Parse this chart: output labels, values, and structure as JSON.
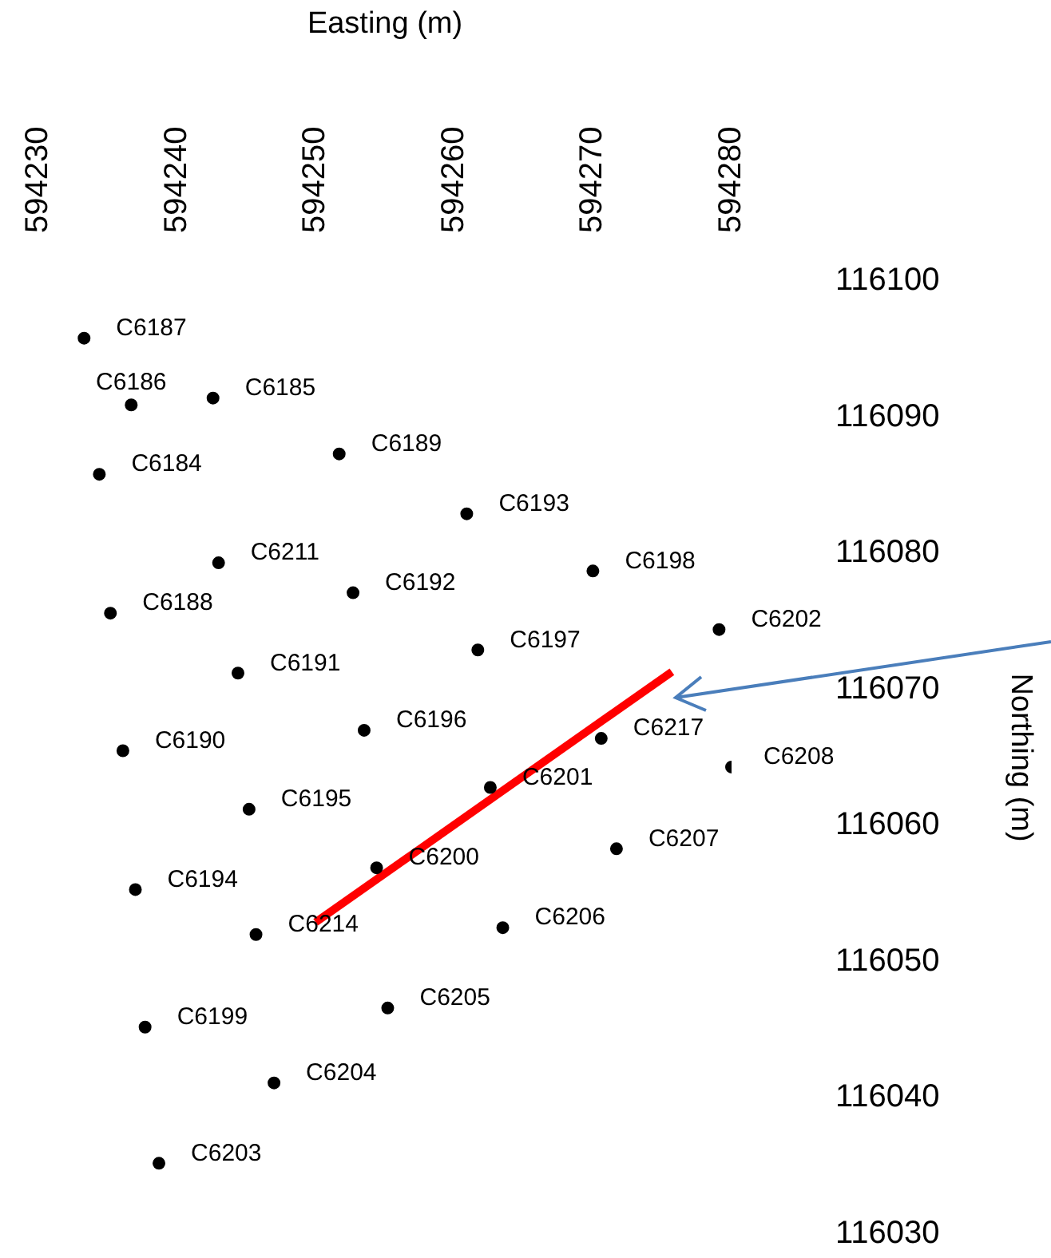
{
  "chart_data": {
    "type": "scatter",
    "xlabel": "Easting (m)",
    "ylabel": "Northing (m)",
    "xlim": [
      594230,
      594280
    ],
    "ylim": [
      116030,
      116100
    ],
    "xticks": [
      594230,
      594240,
      594250,
      594260,
      594270,
      594280
    ],
    "yticks": [
      116030,
      116040,
      116050,
      116060,
      116070,
      116080,
      116090,
      116100
    ],
    "grid": false,
    "legend": false,
    "marker": "circle",
    "series": [
      {
        "type": "scatter",
        "color": "#000000",
        "x": [
          594233.3,
          594236.7,
          594242.6,
          594251.7,
          594234.4,
          594260.9,
          594243.0,
          594270.0,
          594252.7,
          594235.2,
          594279.1,
          594261.7,
          594244.4,
          594253.5,
          594236.1,
          594270.6,
          594280.0,
          594262.6,
          594245.2,
          594271.7,
          594254.4,
          594237.0,
          594245.7,
          594263.5,
          594237.7,
          594255.2,
          594247.0,
          594238.7
        ],
        "values": [
          116095.8,
          116090.9,
          116091.4,
          116087.3,
          116085.8,
          116082.9,
          116079.3,
          116078.7,
          116077.1,
          116075.6,
          116074.4,
          116072.9,
          116071.2,
          116067.0,
          116065.5,
          116066.4,
          116064.3,
          116062.8,
          116061.2,
          116058.3,
          116056.9,
          116055.3,
          116052.0,
          116052.5,
          116045.2,
          116046.6,
          116041.1,
          116035.2
        ]
      },
      {
        "type": "line",
        "color": "#ff0000",
        "marker": "none",
        "x": [
          594250.0,
          594275.7
        ],
        "values": [
          116052.9,
          116071.3
        ]
      }
    ],
    "annotations": [
      {
        "text": "C6187",
        "x": 594233.3,
        "y": 116095.8
      },
      {
        "text": "C6186",
        "x": 594236.7,
        "y": 116090.9
      },
      {
        "text": "C6185",
        "x": 594242.6,
        "y": 116091.4
      },
      {
        "text": "C6189",
        "x": 594251.7,
        "y": 116087.3
      },
      {
        "text": "C6184",
        "x": 594234.4,
        "y": 116085.8
      },
      {
        "text": "C6193",
        "x": 594260.9,
        "y": 116082.9
      },
      {
        "text": "C6211",
        "x": 594243.0,
        "y": 116079.3
      },
      {
        "text": "C6198",
        "x": 594270.0,
        "y": 116078.7
      },
      {
        "text": "C6192",
        "x": 594252.7,
        "y": 116077.1
      },
      {
        "text": "C6188",
        "x": 594235.2,
        "y": 116075.6
      },
      {
        "text": "C6202",
        "x": 594279.1,
        "y": 116074.4
      },
      {
        "text": "C6197",
        "x": 594261.7,
        "y": 116072.9
      },
      {
        "text": "C6191",
        "x": 594244.4,
        "y": 116071.2
      },
      {
        "text": "C6196",
        "x": 594253.5,
        "y": 116067.0
      },
      {
        "text": "C6190",
        "x": 594236.1,
        "y": 116065.5
      },
      {
        "text": "C6217",
        "x": 594270.6,
        "y": 116066.4
      },
      {
        "text": "C6208",
        "x": 594280.0,
        "y": 116064.3
      },
      {
        "text": "C6201",
        "x": 594262.6,
        "y": 116062.8
      },
      {
        "text": "C6195",
        "x": 594245.2,
        "y": 116061.2
      },
      {
        "text": "C6207",
        "x": 594271.7,
        "y": 116058.3
      },
      {
        "text": "C6200",
        "x": 594254.4,
        "y": 116056.9
      },
      {
        "text": "C6194",
        "x": 594237.0,
        "y": 116055.3
      },
      {
        "text": "C6214",
        "x": 594245.7,
        "y": 116052.0
      },
      {
        "text": "C6206",
        "x": 594263.5,
        "y": 116052.5
      },
      {
        "text": "C6199",
        "x": 594237.7,
        "y": 116045.2
      },
      {
        "text": "C6205",
        "x": 594255.2,
        "y": 116046.6
      },
      {
        "text": "C6204",
        "x": 594247.0,
        "y": 116041.1
      },
      {
        "text": "C6203",
        "x": 594238.7,
        "y": 116035.2
      }
    ]
  }
}
